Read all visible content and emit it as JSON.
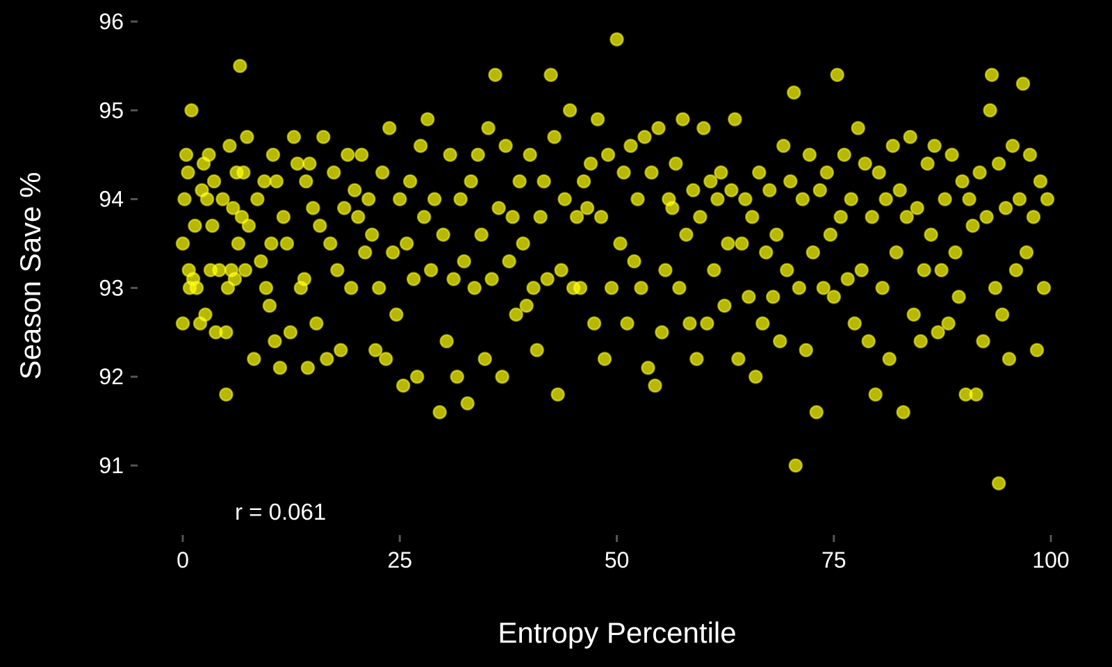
{
  "chart_data": {
    "type": "scatter",
    "xlabel": "Entropy Percentile",
    "ylabel": "Season Save %",
    "xlim": [
      -3,
      101
    ],
    "ylim": [
      90.25,
      96.25
    ],
    "x_ticks": [
      0,
      25,
      50,
      75,
      100
    ],
    "y_ticks": [
      91,
      92,
      93,
      94,
      95,
      96
    ],
    "x_tick_labels": [
      "0",
      "25",
      "50",
      "75",
      "100"
    ],
    "y_tick_labels": [
      "91",
      "92",
      "93",
      "94",
      "95",
      "96"
    ],
    "grid": false,
    "annotation": "r =  0.061",
    "point_color": "#ffff00",
    "background": "#000000",
    "points": [
      [
        0.0,
        93.5
      ],
      [
        0.0,
        92.6
      ],
      [
        0.2,
        94.0
      ],
      [
        0.4,
        94.5
      ],
      [
        0.6,
        94.3
      ],
      [
        0.7,
        93.2
      ],
      [
        0.8,
        93.0
      ],
      [
        1.0,
        95.0
      ],
      [
        1.2,
        93.1
      ],
      [
        1.4,
        93.7
      ],
      [
        1.6,
        93.0
      ],
      [
        2.0,
        92.6
      ],
      [
        2.2,
        94.1
      ],
      [
        2.4,
        94.4
      ],
      [
        2.6,
        92.7
      ],
      [
        2.8,
        94.0
      ],
      [
        3.0,
        94.5
      ],
      [
        3.2,
        93.2
      ],
      [
        3.4,
        93.7
      ],
      [
        3.6,
        94.2
      ],
      [
        3.8,
        92.5
      ],
      [
        4.2,
        93.2
      ],
      [
        4.6,
        94.0
      ],
      [
        5.0,
        91.8
      ],
      [
        5.0,
        92.5
      ],
      [
        5.2,
        93.0
      ],
      [
        5.4,
        94.6
      ],
      [
        5.6,
        93.2
      ],
      [
        5.8,
        93.9
      ],
      [
        6.0,
        93.1
      ],
      [
        6.2,
        94.3
      ],
      [
        6.4,
        93.5
      ],
      [
        6.6,
        95.5
      ],
      [
        6.8,
        93.8
      ],
      [
        7.0,
        94.3
      ],
      [
        7.2,
        93.2
      ],
      [
        7.4,
        94.7
      ],
      [
        7.6,
        93.7
      ],
      [
        8.2,
        92.2
      ],
      [
        8.6,
        94.0
      ],
      [
        9.0,
        93.3
      ],
      [
        9.4,
        94.2
      ],
      [
        9.6,
        93.0
      ],
      [
        10.0,
        92.8
      ],
      [
        10.2,
        93.5
      ],
      [
        10.4,
        94.5
      ],
      [
        10.6,
        92.4
      ],
      [
        10.8,
        94.2
      ],
      [
        11.2,
        92.1
      ],
      [
        11.6,
        93.8
      ],
      [
        12.0,
        93.5
      ],
      [
        12.4,
        92.5
      ],
      [
        12.8,
        94.7
      ],
      [
        13.2,
        94.4
      ],
      [
        13.6,
        93.0
      ],
      [
        14.0,
        93.1
      ],
      [
        14.2,
        94.2
      ],
      [
        14.4,
        92.1
      ],
      [
        14.6,
        94.4
      ],
      [
        15.0,
        93.9
      ],
      [
        15.4,
        92.6
      ],
      [
        15.8,
        93.7
      ],
      [
        16.2,
        94.7
      ],
      [
        16.6,
        92.2
      ],
      [
        17.0,
        93.5
      ],
      [
        17.4,
        94.3
      ],
      [
        17.8,
        93.2
      ],
      [
        18.2,
        92.3
      ],
      [
        18.6,
        93.9
      ],
      [
        19.0,
        94.5
      ],
      [
        19.4,
        93.0
      ],
      [
        19.8,
        94.1
      ],
      [
        20.2,
        93.8
      ],
      [
        20.6,
        94.5
      ],
      [
        21.0,
        93.4
      ],
      [
        21.4,
        94.0
      ],
      [
        21.8,
        93.6
      ],
      [
        22.2,
        92.3
      ],
      [
        22.6,
        93.0
      ],
      [
        23.0,
        94.3
      ],
      [
        23.4,
        92.2
      ],
      [
        23.8,
        94.8
      ],
      [
        24.2,
        93.4
      ],
      [
        24.6,
        92.7
      ],
      [
        25.0,
        94.0
      ],
      [
        25.4,
        91.9
      ],
      [
        25.8,
        93.5
      ],
      [
        26.2,
        94.2
      ],
      [
        26.6,
        93.1
      ],
      [
        27.0,
        92.0
      ],
      [
        27.4,
        94.6
      ],
      [
        27.8,
        93.8
      ],
      [
        28.2,
        94.9
      ],
      [
        28.6,
        93.2
      ],
      [
        29.0,
        94.0
      ],
      [
        29.6,
        91.6
      ],
      [
        30.0,
        93.6
      ],
      [
        30.4,
        92.4
      ],
      [
        30.8,
        94.5
      ],
      [
        31.2,
        93.1
      ],
      [
        31.6,
        92.0
      ],
      [
        32.0,
        94.0
      ],
      [
        32.4,
        93.3
      ],
      [
        32.8,
        91.7
      ],
      [
        33.2,
        94.2
      ],
      [
        33.6,
        93.0
      ],
      [
        34.0,
        94.5
      ],
      [
        34.4,
        93.6
      ],
      [
        34.8,
        92.2
      ],
      [
        35.2,
        94.8
      ],
      [
        35.6,
        93.1
      ],
      [
        36.0,
        95.4
      ],
      [
        36.4,
        93.9
      ],
      [
        36.8,
        92.0
      ],
      [
        37.2,
        94.6
      ],
      [
        37.6,
        93.3
      ],
      [
        38.0,
        93.8
      ],
      [
        38.4,
        92.7
      ],
      [
        38.8,
        94.2
      ],
      [
        39.2,
        93.5
      ],
      [
        39.6,
        92.8
      ],
      [
        40.0,
        94.5
      ],
      [
        40.4,
        93.0
      ],
      [
        40.8,
        92.3
      ],
      [
        41.2,
        93.8
      ],
      [
        41.6,
        94.2
      ],
      [
        42.0,
        93.1
      ],
      [
        42.4,
        95.4
      ],
      [
        42.8,
        94.7
      ],
      [
        43.2,
        91.8
      ],
      [
        43.6,
        93.2
      ],
      [
        44.0,
        94.0
      ],
      [
        44.6,
        95.0
      ],
      [
        45.0,
        93.0
      ],
      [
        45.4,
        93.8
      ],
      [
        45.8,
        93.0
      ],
      [
        46.2,
        94.2
      ],
      [
        46.6,
        93.9
      ],
      [
        47.0,
        94.4
      ],
      [
        47.4,
        92.6
      ],
      [
        47.8,
        94.9
      ],
      [
        48.2,
        93.8
      ],
      [
        48.6,
        92.2
      ],
      [
        49.0,
        94.5
      ],
      [
        49.4,
        93.0
      ],
      [
        50.0,
        95.8
      ],
      [
        50.4,
        93.5
      ],
      [
        50.8,
        94.3
      ],
      [
        51.2,
        92.6
      ],
      [
        51.6,
        94.6
      ],
      [
        52.0,
        93.3
      ],
      [
        52.4,
        94.0
      ],
      [
        52.8,
        93.0
      ],
      [
        53.2,
        94.7
      ],
      [
        53.6,
        92.1
      ],
      [
        54.0,
        94.3
      ],
      [
        54.4,
        91.9
      ],
      [
        54.8,
        94.8
      ],
      [
        55.2,
        92.5
      ],
      [
        55.6,
        93.2
      ],
      [
        56.0,
        94.0
      ],
      [
        56.4,
        93.9
      ],
      [
        56.8,
        94.4
      ],
      [
        57.2,
        93.0
      ],
      [
        57.6,
        94.9
      ],
      [
        58.0,
        93.6
      ],
      [
        58.4,
        92.6
      ],
      [
        58.8,
        94.1
      ],
      [
        59.2,
        92.2
      ],
      [
        59.6,
        93.8
      ],
      [
        60.0,
        94.8
      ],
      [
        60.4,
        92.6
      ],
      [
        60.8,
        94.2
      ],
      [
        61.2,
        93.2
      ],
      [
        61.6,
        94.0
      ],
      [
        62.0,
        94.3
      ],
      [
        62.4,
        92.8
      ],
      [
        62.8,
        93.5
      ],
      [
        63.2,
        94.1
      ],
      [
        63.6,
        94.9
      ],
      [
        64.0,
        92.2
      ],
      [
        64.4,
        93.5
      ],
      [
        64.8,
        94.0
      ],
      [
        65.2,
        92.9
      ],
      [
        65.6,
        93.8
      ],
      [
        66.0,
        92.0
      ],
      [
        66.4,
        94.3
      ],
      [
        66.8,
        92.6
      ],
      [
        67.2,
        93.4
      ],
      [
        67.6,
        94.1
      ],
      [
        68.0,
        92.9
      ],
      [
        68.4,
        93.6
      ],
      [
        68.8,
        92.4
      ],
      [
        69.2,
        94.6
      ],
      [
        69.6,
        93.2
      ],
      [
        70.0,
        94.2
      ],
      [
        70.4,
        95.2
      ],
      [
        70.6,
        91.0
      ],
      [
        71.0,
        93.0
      ],
      [
        71.4,
        94.0
      ],
      [
        71.8,
        92.3
      ],
      [
        72.2,
        94.5
      ],
      [
        72.6,
        93.4
      ],
      [
        73.0,
        91.6
      ],
      [
        73.4,
        94.1
      ],
      [
        73.8,
        93.0
      ],
      [
        74.2,
        94.3
      ],
      [
        74.6,
        93.6
      ],
      [
        75.0,
        92.9
      ],
      [
        75.4,
        95.4
      ],
      [
        75.8,
        93.8
      ],
      [
        76.2,
        94.5
      ],
      [
        76.6,
        93.1
      ],
      [
        77.0,
        94.0
      ],
      [
        77.4,
        92.6
      ],
      [
        77.8,
        94.8
      ],
      [
        78.2,
        93.2
      ],
      [
        78.6,
        94.4
      ],
      [
        79.0,
        92.4
      ],
      [
        79.4,
        93.8
      ],
      [
        79.8,
        91.8
      ],
      [
        80.2,
        94.3
      ],
      [
        80.6,
        93.0
      ],
      [
        81.0,
        94.0
      ],
      [
        81.4,
        92.2
      ],
      [
        81.8,
        94.6
      ],
      [
        82.2,
        93.4
      ],
      [
        82.6,
        94.1
      ],
      [
        83.0,
        91.6
      ],
      [
        83.4,
        93.8
      ],
      [
        83.8,
        94.7
      ],
      [
        84.2,
        92.7
      ],
      [
        84.6,
        93.9
      ],
      [
        85.0,
        92.4
      ],
      [
        85.4,
        93.2
      ],
      [
        85.8,
        94.4
      ],
      [
        86.2,
        93.6
      ],
      [
        86.6,
        94.6
      ],
      [
        87.0,
        92.5
      ],
      [
        87.4,
        93.2
      ],
      [
        87.8,
        94.0
      ],
      [
        88.2,
        92.6
      ],
      [
        88.6,
        94.5
      ],
      [
        89.0,
        93.4
      ],
      [
        89.4,
        92.9
      ],
      [
        89.8,
        94.2
      ],
      [
        90.2,
        91.8
      ],
      [
        90.6,
        94.0
      ],
      [
        91.0,
        93.7
      ],
      [
        91.4,
        91.8
      ],
      [
        91.8,
        94.3
      ],
      [
        92.2,
        92.4
      ],
      [
        92.6,
        93.8
      ],
      [
        93.0,
        95.0
      ],
      [
        93.2,
        95.4
      ],
      [
        93.6,
        93.0
      ],
      [
        94.0,
        90.8
      ],
      [
        94.0,
        94.4
      ],
      [
        94.4,
        92.7
      ],
      [
        94.8,
        93.9
      ],
      [
        95.2,
        92.2
      ],
      [
        95.6,
        94.6
      ],
      [
        96.0,
        93.2
      ],
      [
        96.4,
        94.0
      ],
      [
        96.8,
        95.3
      ],
      [
        97.2,
        93.4
      ],
      [
        97.6,
        94.5
      ],
      [
        98.0,
        93.8
      ],
      [
        98.4,
        92.3
      ],
      [
        98.8,
        94.2
      ],
      [
        99.2,
        93.0
      ],
      [
        99.6,
        94.0
      ]
    ]
  }
}
